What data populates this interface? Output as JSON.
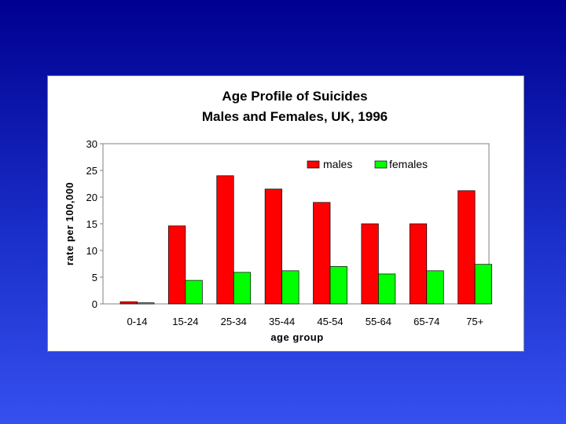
{
  "chart_data": {
    "type": "bar",
    "title": "Age Profile of Suicides",
    "subtitle": "Males and Females, UK, 1996",
    "xlabel": "age group",
    "ylabel": "rate per 100,000",
    "categories": [
      "0-14",
      "15-24",
      "25-34",
      "35-44",
      "45-54",
      "55-64",
      "65-74",
      "75+"
    ],
    "series": [
      {
        "name": "males",
        "color": "#ff0000",
        "values": [
          0.4,
          14.6,
          24.0,
          21.5,
          19.0,
          15.0,
          15.0,
          21.2
        ]
      },
      {
        "name": "females",
        "color": "#00ff00",
        "values": [
          0.2,
          4.4,
          5.9,
          6.2,
          7.0,
          5.6,
          6.2,
          7.4
        ]
      }
    ],
    "ylim": [
      0,
      30
    ],
    "yticks": [
      0,
      5,
      10,
      15,
      20,
      25,
      30
    ],
    "grid": false,
    "legend_position": "top-right"
  }
}
